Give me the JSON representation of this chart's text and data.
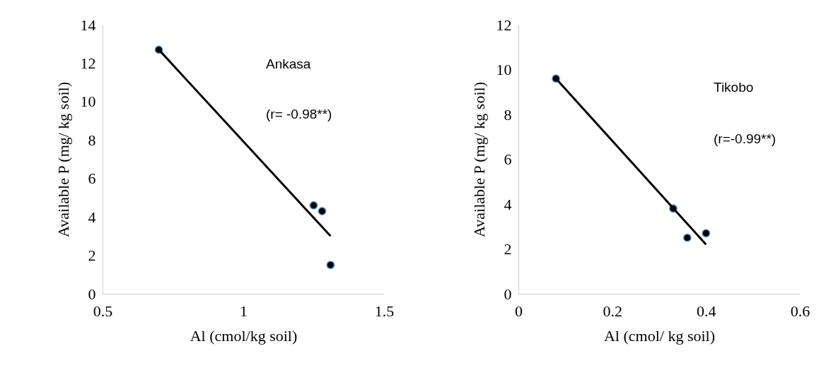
{
  "chart_data": [
    {
      "type": "scatter",
      "xlabel": "Al (cmol/kg soil)",
      "ylabel": "Available P (mg/ kg soil)",
      "annotations": [
        "Ankasa",
        "(r= -0.98**)"
      ],
      "xlim": [
        0.5,
        1.5
      ],
      "xticks": [
        0.5,
        1,
        1.5
      ],
      "ylim": [
        0,
        14
      ],
      "yticks": [
        0,
        2,
        4,
        6,
        8,
        10,
        12,
        14
      ],
      "grid": false,
      "series": [
        {
          "marker": "circle",
          "color": "#000000",
          "x": [
            0.7,
            1.25,
            1.28,
            1.31
          ],
          "values": [
            12.7,
            4.6,
            4.3,
            1.5
          ]
        },
        {
          "type": "line",
          "marker": "none",
          "color": "#000000",
          "x": [
            0.7,
            1.31
          ],
          "values": [
            12.7,
            3.0
          ]
        }
      ]
    },
    {
      "type": "scatter",
      "xlabel": "Al (cmol/ kg soil)",
      "ylabel": "Available P (mg/ kg soil)",
      "annotations": [
        "Tikobo",
        "(r=-0.99**)"
      ],
      "xlim": [
        0,
        0.6
      ],
      "xticks": [
        0,
        0.2,
        0.4,
        0.6
      ],
      "ylim": [
        0,
        12
      ],
      "yticks": [
        0,
        2,
        4,
        6,
        8,
        10,
        12
      ],
      "grid": false,
      "series": [
        {
          "marker": "circle",
          "color": "#000000",
          "x": [
            0.08,
            0.33,
            0.36,
            0.4
          ],
          "values": [
            9.6,
            3.8,
            2.5,
            2.7
          ]
        },
        {
          "type": "line",
          "marker": "none",
          "color": "#000000",
          "x": [
            0.08,
            0.4
          ],
          "values": [
            9.6,
            2.2
          ]
        }
      ]
    }
  ]
}
